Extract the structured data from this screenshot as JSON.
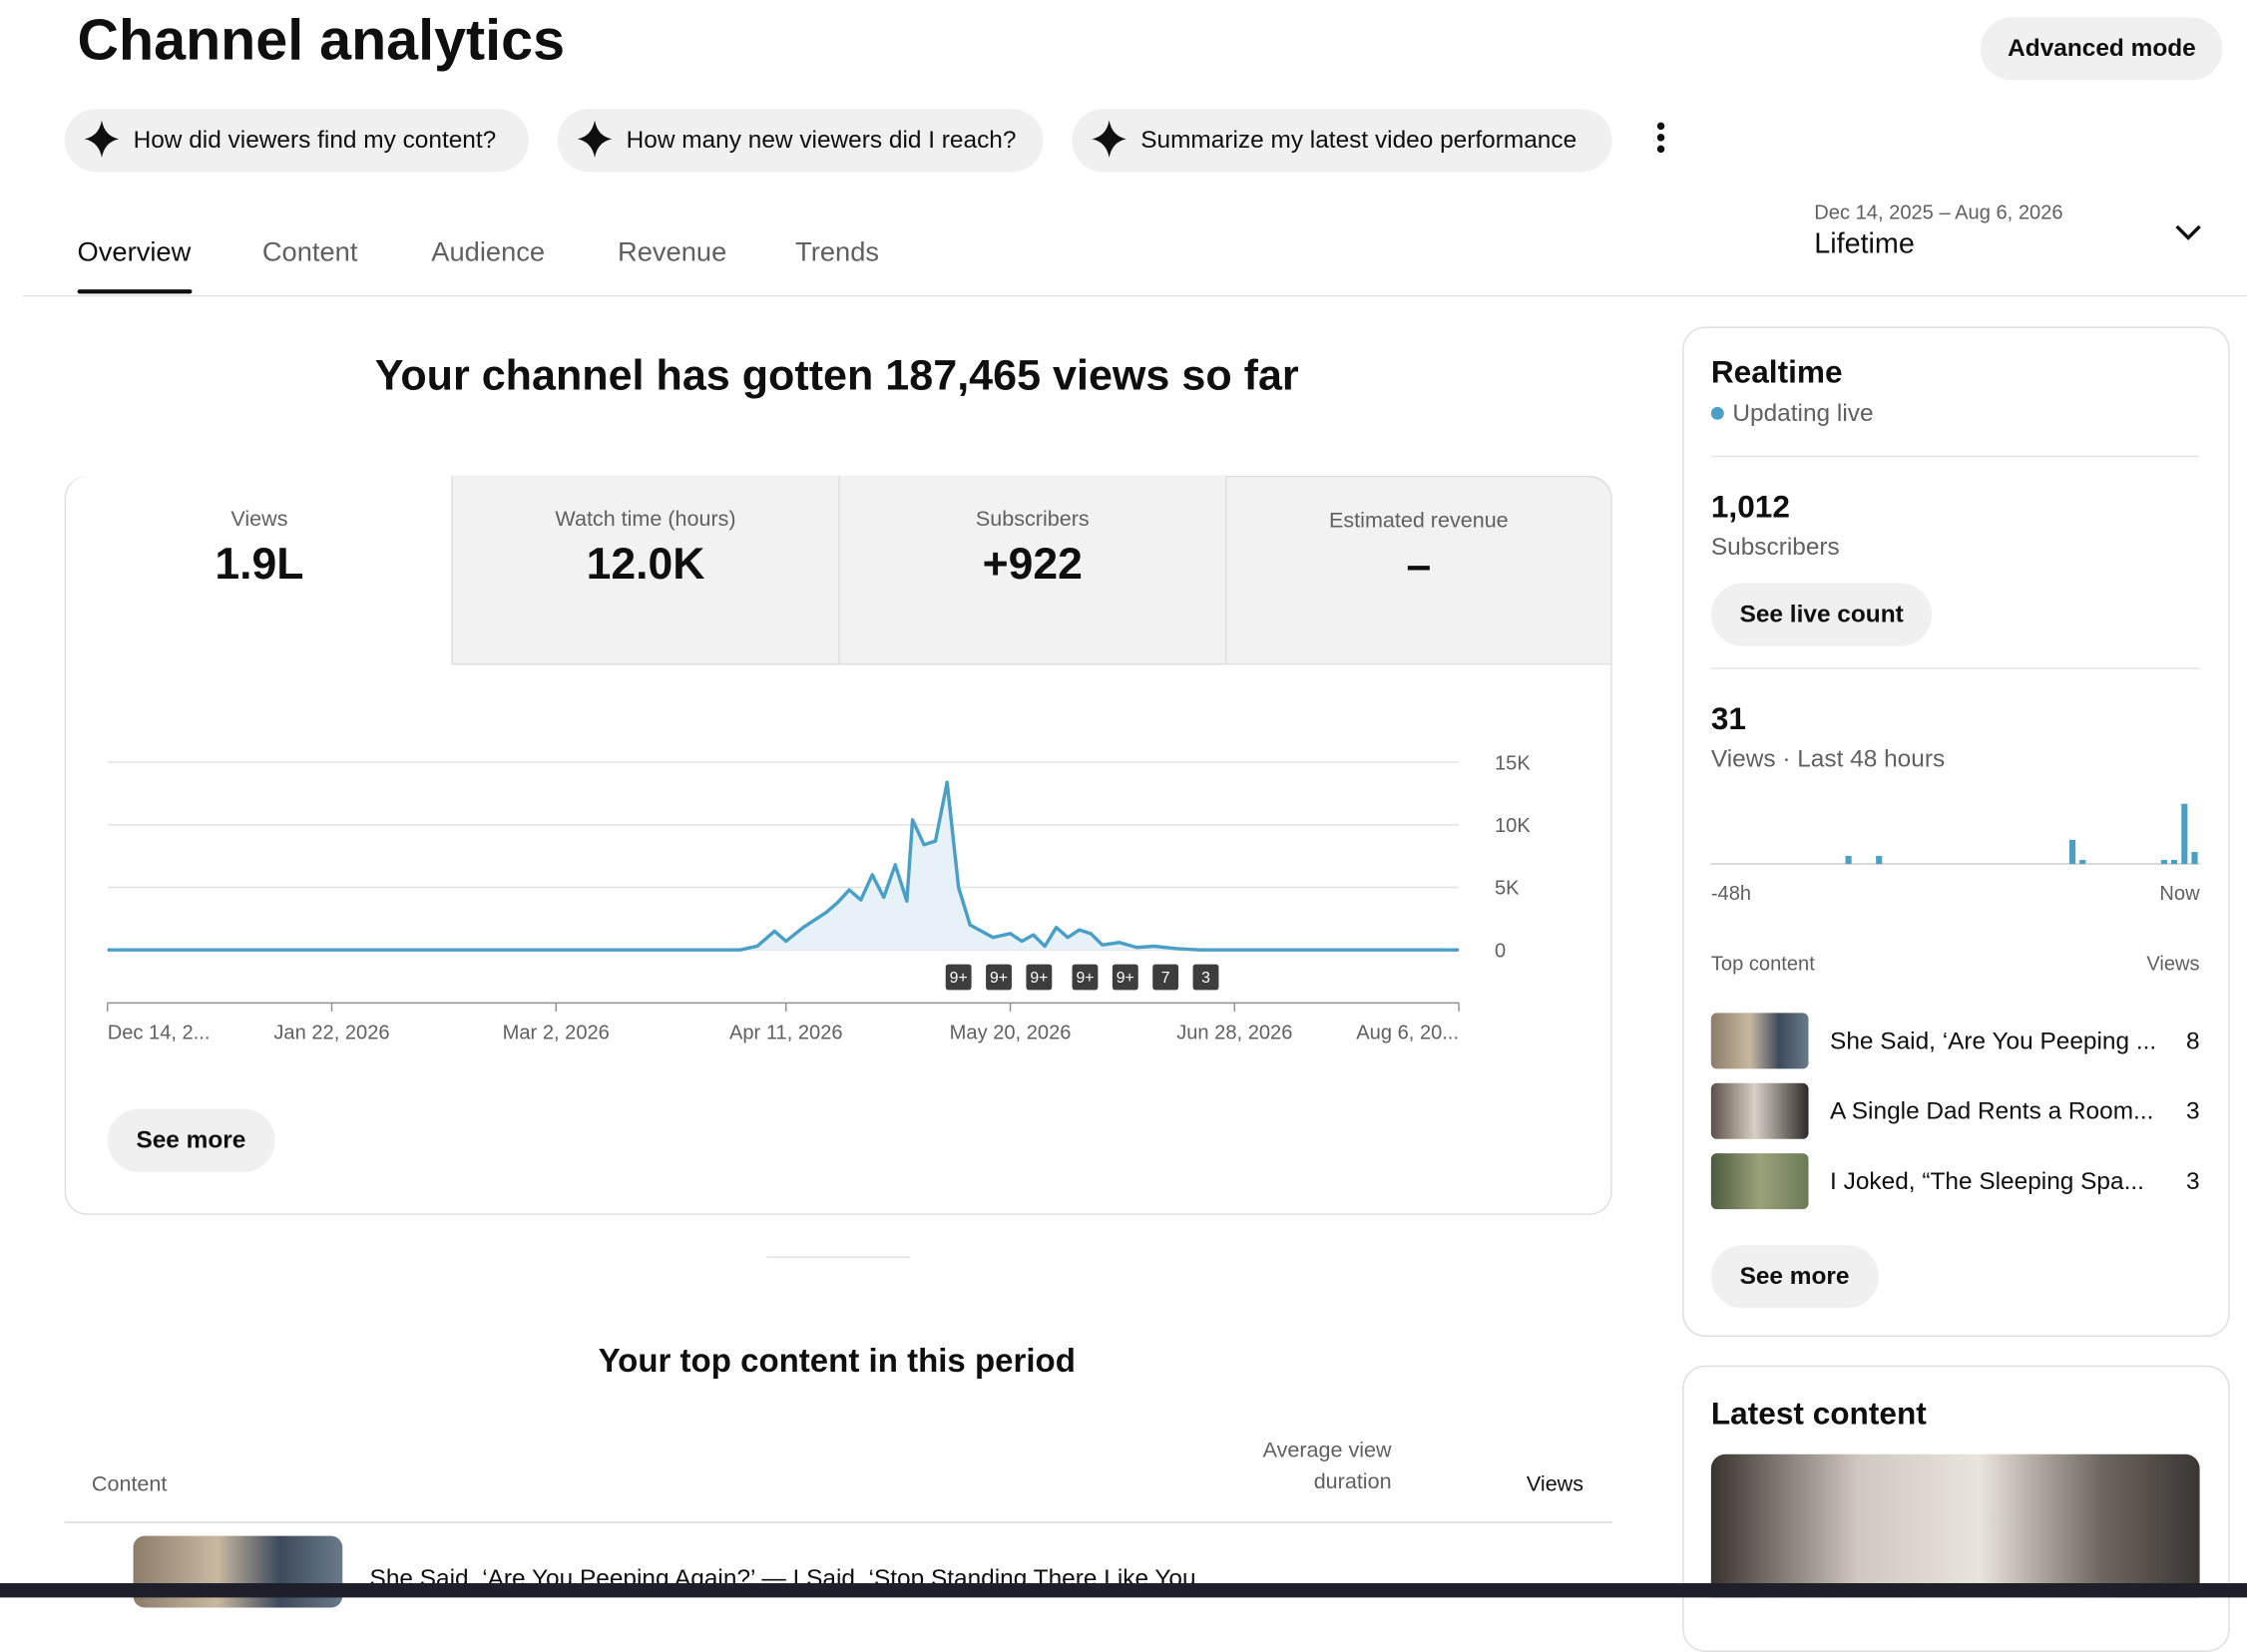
{
  "header": {
    "title": "Channel analytics",
    "advanced_mode": "Advanced mode"
  },
  "suggestions": [
    "How did viewers find my content?",
    "How many new viewers did I reach?",
    "Summarize my latest video performance"
  ],
  "tabs": [
    "Overview",
    "Content",
    "Audience",
    "Revenue",
    "Trends"
  ],
  "date_range": {
    "range": "Dec 14, 2025 – Aug 6, 2026",
    "period": "Lifetime"
  },
  "headline": "Your channel has gotten 187,465 views so far",
  "metrics": [
    {
      "label": "Views",
      "value": "1.9L"
    },
    {
      "label": "Watch time (hours)",
      "value": "12.0K"
    },
    {
      "label": "Subscribers",
      "value": "+922"
    },
    {
      "label": "Estimated revenue",
      "value": "–"
    }
  ],
  "chart_data": {
    "type": "line",
    "color": "#4a9fc7",
    "grid": true,
    "x": [
      "2025-12-14",
      "2026-04-03",
      "2026-04-06",
      "2026-04-09",
      "2026-04-11",
      "2026-04-14",
      "2026-04-16",
      "2026-04-18",
      "2026-04-20",
      "2026-04-22",
      "2026-04-24",
      "2026-04-26",
      "2026-04-28",
      "2026-04-30",
      "2026-05-02",
      "2026-05-03",
      "2026-05-05",
      "2026-05-07",
      "2026-05-09",
      "2026-05-11",
      "2026-05-13",
      "2026-05-15",
      "2026-05-17",
      "2026-05-20",
      "2026-05-22",
      "2026-05-24",
      "2026-05-26",
      "2026-05-28",
      "2026-05-30",
      "2026-06-01",
      "2026-06-03",
      "2026-06-05",
      "2026-06-08",
      "2026-06-11",
      "2026-06-14",
      "2026-06-18",
      "2026-06-22",
      "2026-08-06"
    ],
    "values": [
      0,
      0,
      300,
      1500,
      700,
      1800,
      2400,
      3000,
      3800,
      4800,
      4000,
      6000,
      4200,
      6800,
      3900,
      10400,
      8400,
      8700,
      13400,
      5000,
      2000,
      1500,
      1000,
      1300,
      700,
      1200,
      300,
      1800,
      1000,
      1600,
      1300,
      400,
      600,
      200,
      300,
      100,
      0,
      0
    ],
    "xlim": [
      "2025-12-14",
      "2026-08-06"
    ],
    "xticks": [
      {
        "value": "2025-12-14",
        "label": "Dec 14, 2..."
      },
      {
        "value": "2026-01-22",
        "label": "Jan 22, 2026"
      },
      {
        "value": "2026-03-02",
        "label": "Mar 2, 2026"
      },
      {
        "value": "2026-04-11",
        "label": "Apr 11, 2026"
      },
      {
        "value": "2026-05-20",
        "label": "May 20, 2026"
      },
      {
        "value": "2026-06-28",
        "label": "Jun 28, 2026"
      },
      {
        "value": "2026-08-06",
        "label": "Aug 6, 20..."
      }
    ],
    "ylim": [
      0,
      15000
    ],
    "yticks": [
      0,
      {
        "value": 5000,
        "label": "5K"
      },
      {
        "value": 10000,
        "label": "10K"
      },
      {
        "value": 15000,
        "label": "15K"
      }
    ],
    "annotations": [
      {
        "x": "2026-05-11",
        "label": "9+"
      },
      {
        "x": "2026-05-18",
        "label": "9+"
      },
      {
        "x": "2026-05-25",
        "label": "9+"
      },
      {
        "x": "2026-06-02",
        "label": "9+"
      },
      {
        "x": "2026-06-09",
        "label": "9+"
      },
      {
        "x": "2026-06-16",
        "label": "7"
      },
      {
        "x": "2026-06-23",
        "label": "3"
      }
    ]
  },
  "see_more": "See more",
  "top_content": {
    "title": "Your top content in this period",
    "columns": [
      "Content",
      "Average view duration",
      "Views"
    ],
    "rows": [
      {
        "title": "She Said, ‘Are You Peeping Again?’ — I Said, ‘Stop Standing There Like You"
      }
    ]
  },
  "realtime": {
    "title": "Realtime",
    "status": "Updating live",
    "subscribers": "1,012",
    "subscribers_label": "Subscribers",
    "live_count": "See live count",
    "views": "31",
    "views_label": "Views · Last 48 hours",
    "chart": {
      "type": "bar",
      "color": "#4a9fc7",
      "values": [
        0,
        0,
        0,
        0,
        0,
        0,
        0,
        0,
        0,
        0,
        0,
        0,
        0,
        2,
        0,
        0,
        2,
        0,
        0,
        0,
        0,
        0,
        0,
        0,
        0,
        0,
        0,
        0,
        0,
        0,
        0,
        0,
        0,
        0,
        0,
        6,
        1,
        0,
        0,
        0,
        0,
        0,
        0,
        0,
        1,
        1,
        15,
        3
      ],
      "start_label": "-48h",
      "end_label": "Now"
    },
    "top_label": "Top content",
    "views_col": "Views",
    "top": [
      {
        "title": "She Said, ‘Are You Peeping ...",
        "views": "8"
      },
      {
        "title": "A Single Dad Rents a Room...",
        "views": "3"
      },
      {
        "title": "I Joked, “The Sleeping Spa...",
        "views": "3"
      }
    ],
    "see_more": "See more"
  },
  "latest": {
    "title": "Latest content"
  }
}
